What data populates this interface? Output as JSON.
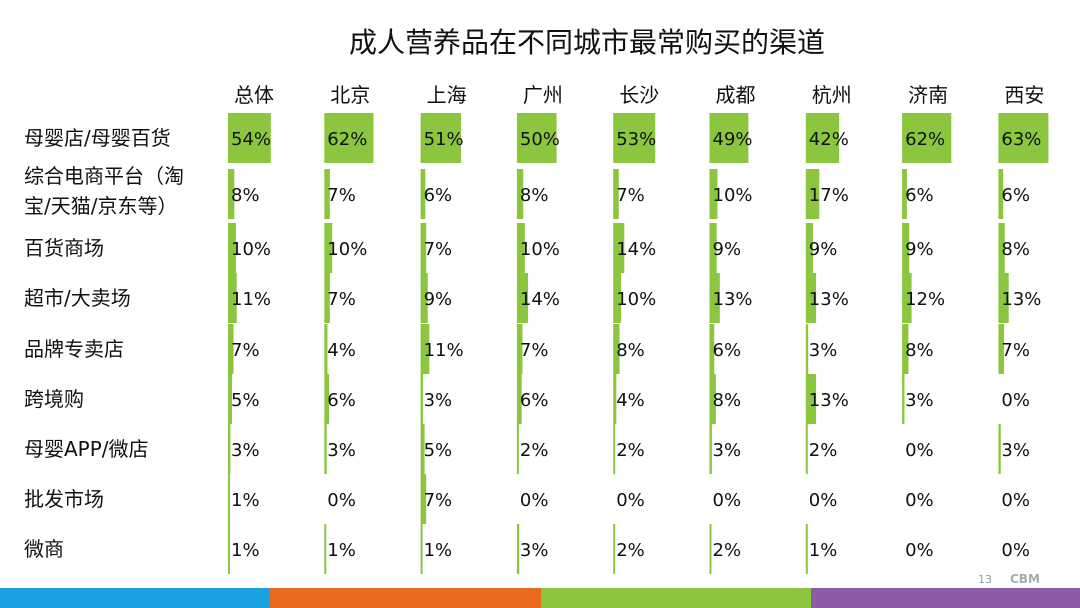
{
  "chart_data": {
    "type": "table",
    "title": "成人营养品在不同城市最常购买的渠道",
    "columns": [
      "总体",
      "北京",
      "上海",
      "广州",
      "长沙",
      "成都",
      "杭州",
      "济南",
      "西安"
    ],
    "rows": [
      {
        "label": [
          "母婴店/母婴百货"
        ],
        "values": [
          54,
          62,
          51,
          50,
          53,
          49,
          42,
          62,
          63
        ]
      },
      {
        "label": [
          "综合电商平台（淘",
          "宝/天猫/京东等）"
        ],
        "values": [
          8,
          7,
          6,
          8,
          7,
          10,
          17,
          6,
          6
        ]
      },
      {
        "label": [
          "百货商场"
        ],
        "values": [
          10,
          10,
          7,
          10,
          14,
          9,
          9,
          9,
          8
        ]
      },
      {
        "label": [
          "超市/大卖场"
        ],
        "values": [
          11,
          7,
          9,
          14,
          10,
          13,
          13,
          12,
          13
        ]
      },
      {
        "label": [
          "品牌专卖店"
        ],
        "values": [
          7,
          4,
          11,
          7,
          8,
          6,
          3,
          8,
          7
        ]
      },
      {
        "label": [
          "跨境购"
        ],
        "values": [
          5,
          6,
          3,
          6,
          4,
          8,
          13,
          3,
          0
        ]
      },
      {
        "label": [
          "母婴APP/微店"
        ],
        "values": [
          3,
          3,
          5,
          2,
          2,
          3,
          2,
          0,
          3
        ]
      },
      {
        "label": [
          "批发市场"
        ],
        "values": [
          1,
          0,
          7,
          0,
          0,
          0,
          0,
          0,
          0
        ]
      },
      {
        "label": [
          "微商"
        ],
        "values": [
          1,
          1,
          1,
          3,
          2,
          2,
          1,
          0,
          0
        ]
      }
    ],
    "value_suffix": "%",
    "bar_color": "#8cc63f",
    "value_max": 63
  },
  "footer": {
    "page_number": "13",
    "brand": "CBM",
    "stripe_colors": [
      "#1ba1e2",
      "#ea6b1f",
      "#8cc63f",
      "#8e5ba6"
    ]
  }
}
